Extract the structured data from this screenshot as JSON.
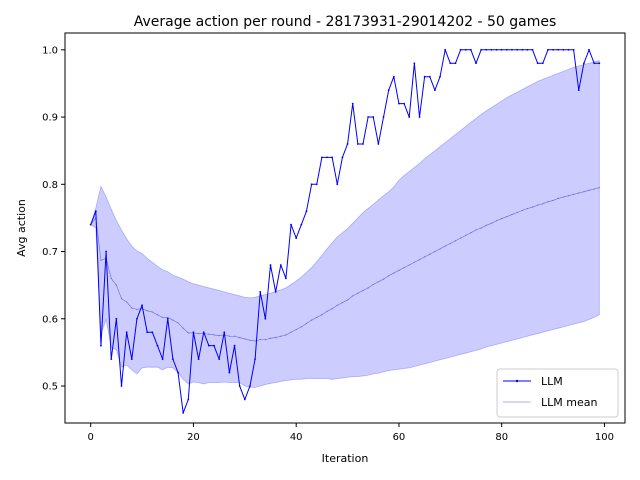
{
  "chart_data": {
    "type": "line",
    "title": "Average action per round - 28173931-29014202 - 50 games",
    "xlabel": "Iteration",
    "ylabel": "Avg action",
    "xlim": [
      -5,
      104
    ],
    "ylim": [
      0.445,
      1.025
    ],
    "xticks": [
      0,
      20,
      40,
      60,
      80,
      100
    ],
    "yticks": [
      0.5,
      0.6,
      0.7,
      0.8,
      0.9,
      1.0
    ],
    "xtick_labels": [
      "0",
      "20",
      "40",
      "60",
      "80",
      "100"
    ],
    "ytick_labels": [
      "0.5",
      "0.6",
      "0.7",
      "0.8",
      "0.9",
      "1.0"
    ],
    "grid": false,
    "legend": {
      "placement": "lower-right",
      "entries": [
        "LLM",
        "LLM mean"
      ]
    },
    "series": [
      {
        "name": "LLM",
        "color": "#0000ff",
        "x": [
          0,
          1,
          2,
          3,
          4,
          5,
          6,
          7,
          8,
          9,
          10,
          11,
          12,
          13,
          14,
          15,
          16,
          17,
          18,
          19,
          20,
          21,
          22,
          23,
          24,
          25,
          26,
          27,
          28,
          29,
          30,
          31,
          32,
          33,
          34,
          35,
          36,
          37,
          38,
          39,
          40,
          41,
          42,
          43,
          44,
          45,
          46,
          47,
          48,
          49,
          50,
          51,
          52,
          53,
          54,
          55,
          56,
          57,
          58,
          59,
          60,
          61,
          62,
          63,
          64,
          65,
          66,
          67,
          68,
          69,
          70,
          71,
          72,
          73,
          74,
          75,
          76,
          77,
          78,
          79,
          80,
          81,
          82,
          83,
          84,
          85,
          86,
          87,
          88,
          89,
          90,
          91,
          92,
          93,
          94,
          95,
          96,
          97,
          98,
          99
        ],
        "values": [
          0.74,
          0.76,
          0.56,
          0.7,
          0.54,
          0.6,
          0.5,
          0.58,
          0.54,
          0.6,
          0.62,
          0.58,
          0.58,
          0.56,
          0.54,
          0.6,
          0.54,
          0.52,
          0.46,
          0.48,
          0.58,
          0.54,
          0.58,
          0.56,
          0.56,
          0.54,
          0.58,
          0.52,
          0.56,
          0.5,
          0.48,
          0.5,
          0.54,
          0.64,
          0.6,
          0.68,
          0.64,
          0.68,
          0.66,
          0.74,
          0.72,
          0.74,
          0.76,
          0.8,
          0.8,
          0.84,
          0.84,
          0.84,
          0.8,
          0.84,
          0.86,
          0.92,
          0.86,
          0.86,
          0.9,
          0.9,
          0.86,
          0.9,
          0.94,
          0.96,
          0.92,
          0.92,
          0.9,
          0.98,
          0.9,
          0.96,
          0.96,
          0.94,
          0.96,
          1.0,
          0.98,
          0.98,
          1.0,
          1.0,
          1.0,
          0.98,
          1.0,
          1.0,
          1.0,
          1.0,
          1.0,
          1.0,
          1.0,
          1.0,
          1.0,
          1.0,
          1.0,
          0.98,
          0.98,
          1.0,
          1.0,
          1.0,
          1.0,
          1.0,
          1.0,
          0.94,
          0.98,
          1.0,
          0.98,
          0.98
        ]
      },
      {
        "name": "LLM mean",
        "color": "#6666ee",
        "x": [
          0,
          1,
          2,
          3,
          4,
          5,
          6,
          7,
          8,
          9,
          10,
          11,
          12,
          13,
          14,
          15,
          16,
          17,
          18,
          19,
          20,
          21,
          22,
          23,
          24,
          25,
          26,
          27,
          28,
          29,
          30,
          31,
          32,
          33,
          34,
          35,
          36,
          37,
          38,
          39,
          40,
          41,
          42,
          43,
          44,
          45,
          46,
          47,
          48,
          49,
          50,
          51,
          52,
          53,
          54,
          55,
          56,
          57,
          58,
          59,
          60,
          61,
          62,
          63,
          64,
          65,
          66,
          67,
          68,
          69,
          70,
          71,
          72,
          73,
          74,
          75,
          76,
          77,
          78,
          79,
          80,
          81,
          82,
          83,
          84,
          85,
          86,
          87,
          88,
          89,
          90,
          91,
          92,
          93,
          94,
          95,
          96,
          97,
          98,
          99
        ],
        "values": [
          0.74,
          0.75,
          0.687,
          0.69,
          0.66,
          0.65,
          0.63,
          0.625,
          0.616,
          0.614,
          0.615,
          0.612,
          0.61,
          0.606,
          0.602,
          0.602,
          0.598,
          0.594,
          0.586,
          0.579,
          0.579,
          0.578,
          0.578,
          0.577,
          0.576,
          0.575,
          0.576,
          0.574,
          0.574,
          0.572,
          0.57,
          0.568,
          0.567,
          0.569,
          0.569,
          0.571,
          0.572,
          0.574,
          0.576,
          0.58,
          0.584,
          0.588,
          0.593,
          0.598,
          0.602,
          0.606,
          0.611,
          0.615,
          0.62,
          0.624,
          0.628,
          0.634,
          0.638,
          0.642,
          0.646,
          0.651,
          0.655,
          0.659,
          0.664,
          0.668,
          0.672,
          0.676,
          0.68,
          0.684,
          0.688,
          0.692,
          0.696,
          0.7,
          0.704,
          0.708,
          0.712,
          0.716,
          0.72,
          0.724,
          0.728,
          0.732,
          0.735,
          0.739,
          0.742,
          0.746,
          0.749,
          0.752,
          0.755,
          0.758,
          0.761,
          0.764,
          0.766,
          0.769,
          0.771,
          0.774,
          0.776,
          0.779,
          0.781,
          0.783,
          0.785,
          0.787,
          0.789,
          0.791,
          0.793,
          0.795
        ]
      }
    ],
    "band": {
      "color": "#0000ff",
      "opacity": 0.2,
      "x": [
        0,
        1,
        2,
        3,
        4,
        5,
        6,
        7,
        8,
        9,
        10,
        11,
        12,
        13,
        14,
        15,
        16,
        17,
        18,
        19,
        20,
        21,
        22,
        23,
        24,
        25,
        26,
        27,
        28,
        29,
        30,
        31,
        32,
        33,
        34,
        35,
        36,
        37,
        38,
        39,
        40,
        41,
        42,
        43,
        44,
        45,
        46,
        47,
        48,
        49,
        50,
        51,
        52,
        53,
        54,
        55,
        56,
        57,
        58,
        59,
        60,
        61,
        62,
        63,
        64,
        65,
        66,
        67,
        68,
        69,
        70,
        71,
        72,
        73,
        74,
        75,
        76,
        77,
        78,
        79,
        80,
        81,
        82,
        83,
        84,
        85,
        86,
        87,
        88,
        89,
        90,
        91,
        92,
        93,
        94,
        95,
        96,
        97,
        98,
        99
      ],
      "upper": [
        0.74,
        0.765,
        0.797,
        0.781,
        0.763,
        0.746,
        0.732,
        0.719,
        0.708,
        0.701,
        0.697,
        0.69,
        0.684,
        0.678,
        0.673,
        0.67,
        0.665,
        0.662,
        0.659,
        0.655,
        0.652,
        0.65,
        0.648,
        0.646,
        0.644,
        0.642,
        0.64,
        0.638,
        0.636,
        0.634,
        0.632,
        0.631,
        0.632,
        0.634,
        0.636,
        0.638,
        0.641,
        0.643,
        0.646,
        0.651,
        0.656,
        0.662,
        0.669,
        0.676,
        0.685,
        0.694,
        0.704,
        0.713,
        0.722,
        0.728,
        0.734,
        0.742,
        0.75,
        0.758,
        0.764,
        0.77,
        0.777,
        0.783,
        0.789,
        0.796,
        0.806,
        0.813,
        0.819,
        0.825,
        0.831,
        0.838,
        0.844,
        0.85,
        0.856,
        0.862,
        0.868,
        0.874,
        0.88,
        0.886,
        0.892,
        0.898,
        0.904,
        0.909,
        0.914,
        0.919,
        0.924,
        0.929,
        0.933,
        0.937,
        0.941,
        0.945,
        0.949,
        0.953,
        0.956,
        0.959,
        0.962,
        0.965,
        0.968,
        0.971,
        0.974,
        0.976,
        0.978,
        0.98,
        0.982,
        0.984
      ],
      "lower": [
        0.74,
        0.735,
        0.577,
        0.599,
        0.557,
        0.554,
        0.528,
        0.531,
        0.524,
        0.518,
        0.527,
        0.528,
        0.528,
        0.528,
        0.524,
        0.528,
        0.527,
        0.52,
        0.51,
        0.503,
        0.506,
        0.505,
        0.503,
        0.505,
        0.505,
        0.505,
        0.506,
        0.505,
        0.505,
        0.505,
        0.5,
        0.498,
        0.498,
        0.5,
        0.502,
        0.504,
        0.505,
        0.507,
        0.508,
        0.509,
        0.51,
        0.51,
        0.511,
        0.511,
        0.511,
        0.511,
        0.511,
        0.51,
        0.511,
        0.512,
        0.513,
        0.514,
        0.514,
        0.515,
        0.516,
        0.518,
        0.519,
        0.521,
        0.523,
        0.524,
        0.525,
        0.526,
        0.527,
        0.529,
        0.531,
        0.533,
        0.535,
        0.537,
        0.539,
        0.541,
        0.543,
        0.545,
        0.547,
        0.549,
        0.551,
        0.553,
        0.555,
        0.558,
        0.56,
        0.562,
        0.564,
        0.566,
        0.568,
        0.57,
        0.572,
        0.574,
        0.576,
        0.578,
        0.58,
        0.582,
        0.584,
        0.586,
        0.588,
        0.59,
        0.592,
        0.594,
        0.596,
        0.599,
        0.602,
        0.606
      ]
    }
  }
}
